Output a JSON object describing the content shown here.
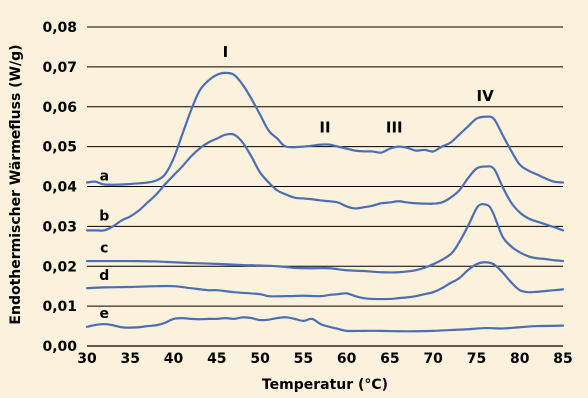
{
  "colors": {
    "background": "#fbf1dc",
    "plot_background": "#fbf1dc",
    "grid": "#000000",
    "series": "#4a6fb5"
  },
  "chart_data": {
    "type": "line",
    "xlabel": "Temperatur (°C)",
    "ylabel": "Endothermischer Wärmefluss (W/g)",
    "xlim": [
      30,
      85
    ],
    "ylim": [
      0,
      0.08
    ],
    "x_ticks": [
      "30",
      "35",
      "40",
      "45",
      "50",
      "55",
      "60",
      "65",
      "70",
      "75",
      "80",
      "85"
    ],
    "y_ticks": [
      "0,00",
      "0,01",
      "0,02",
      "0,03",
      "0,04",
      "0,05",
      "0,06",
      "0,07",
      "0,08"
    ],
    "grid": "horizontal",
    "series": [
      {
        "name": "a",
        "label_position": {
          "x": 32,
          "y": 0.0415
        },
        "x": [
          30,
          31,
          32,
          34,
          36,
          37,
          38,
          39,
          40,
          41,
          42,
          43,
          44,
          45,
          46,
          47,
          48,
          49,
          50,
          51,
          52,
          53,
          55,
          57,
          58,
          59,
          60,
          61,
          62,
          63,
          64,
          65,
          66,
          67,
          68,
          69,
          70,
          71,
          72,
          73,
          74,
          75,
          76,
          77,
          78,
          79,
          80,
          81,
          82,
          83,
          84,
          85
        ],
        "y": [
          0.041,
          0.0412,
          0.0405,
          0.0405,
          0.0408,
          0.041,
          0.0415,
          0.043,
          0.047,
          0.053,
          0.059,
          0.064,
          0.0665,
          0.068,
          0.0685,
          0.068,
          0.0655,
          0.062,
          0.058,
          0.054,
          0.052,
          0.05,
          0.05,
          0.0505,
          0.0505,
          0.05,
          0.0495,
          0.049,
          0.0488,
          0.0488,
          0.0485,
          0.0495,
          0.05,
          0.0497,
          0.049,
          0.0492,
          0.0488,
          0.05,
          0.051,
          0.053,
          0.055,
          0.057,
          0.0575,
          0.057,
          0.053,
          0.049,
          0.0455,
          0.044,
          0.043,
          0.042,
          0.0412,
          0.041
        ]
      },
      {
        "name": "b",
        "label_position": {
          "x": 32,
          "y": 0.0315
        },
        "x": [
          30,
          31,
          32,
          33,
          34,
          35,
          36,
          37,
          38,
          39,
          40,
          41,
          42,
          43,
          44,
          45,
          46,
          47,
          48,
          49,
          50,
          51,
          52,
          53,
          54,
          55,
          56,
          57,
          58,
          59,
          60,
          61,
          62,
          63,
          64,
          65,
          66,
          67,
          68,
          69,
          70,
          71,
          72,
          73,
          74,
          75,
          76,
          77,
          78,
          79,
          80,
          81,
          82,
          83,
          84,
          85
        ],
        "y": [
          0.029,
          0.029,
          0.029,
          0.03,
          0.0315,
          0.0325,
          0.034,
          0.036,
          0.038,
          0.0405,
          0.0428,
          0.045,
          0.0475,
          0.0495,
          0.051,
          0.052,
          0.053,
          0.053,
          0.051,
          0.0475,
          0.0435,
          0.041,
          0.039,
          0.038,
          0.0372,
          0.037,
          0.0368,
          0.0365,
          0.0363,
          0.036,
          0.035,
          0.0345,
          0.0348,
          0.0352,
          0.0358,
          0.036,
          0.0363,
          0.036,
          0.0358,
          0.0357,
          0.0357,
          0.036,
          0.0372,
          0.039,
          0.042,
          0.0445,
          0.045,
          0.0445,
          0.04,
          0.036,
          0.0335,
          0.032,
          0.0312,
          0.0305,
          0.0298,
          0.029
        ]
      },
      {
        "name": "c",
        "label_position": {
          "x": 32,
          "y": 0.0235
        },
        "x": [
          30,
          32,
          35,
          38,
          40,
          42,
          45,
          48,
          50,
          52,
          54,
          56,
          58,
          60,
          62,
          64,
          66,
          68,
          70,
          72,
          73,
          74,
          75,
          75.5,
          76,
          76.5,
          77,
          78,
          79,
          80,
          81,
          82,
          83,
          84,
          85
        ],
        "y": [
          0.0213,
          0.0213,
          0.0213,
          0.0212,
          0.021,
          0.0208,
          0.0206,
          0.0203,
          0.0202,
          0.02,
          0.0196,
          0.0195,
          0.0195,
          0.019,
          0.0188,
          0.0185,
          0.0185,
          0.019,
          0.0205,
          0.023,
          0.026,
          0.03,
          0.0345,
          0.0355,
          0.0355,
          0.035,
          0.033,
          0.0275,
          0.025,
          0.0235,
          0.0225,
          0.022,
          0.0218,
          0.0215,
          0.0213
        ]
      },
      {
        "name": "d",
        "label_position": {
          "x": 32,
          "y": 0.0165
        },
        "x": [
          30,
          32,
          35,
          38,
          40,
          42,
          44,
          45,
          47,
          50,
          51,
          53,
          55,
          57,
          58,
          59,
          60,
          61,
          62,
          63,
          65,
          66,
          67,
          68,
          69,
          70,
          71,
          72,
          73,
          74,
          75,
          76,
          77,
          78,
          79,
          80,
          81,
          82,
          83,
          84,
          85
        ],
        "y": [
          0.0145,
          0.0147,
          0.0148,
          0.015,
          0.015,
          0.0145,
          0.014,
          0.014,
          0.0135,
          0.013,
          0.0125,
          0.0125,
          0.0126,
          0.0125,
          0.0128,
          0.013,
          0.0132,
          0.0125,
          0.012,
          0.0118,
          0.0118,
          0.012,
          0.0122,
          0.0125,
          0.013,
          0.0135,
          0.0145,
          0.0158,
          0.017,
          0.019,
          0.0205,
          0.021,
          0.0205,
          0.0185,
          0.016,
          0.014,
          0.0135,
          0.0136,
          0.0138,
          0.014,
          0.0142
        ]
      },
      {
        "name": "e",
        "label_position": {
          "x": 32,
          "y": 0.007
        },
        "x": [
          30,
          31,
          32,
          33,
          34,
          35,
          36,
          37,
          38,
          39,
          40,
          41,
          42,
          43,
          44,
          45,
          46,
          47,
          48,
          49,
          50,
          51,
          52,
          53,
          54,
          55,
          56,
          57,
          58,
          59,
          60,
          62,
          64,
          66,
          68,
          70,
          72,
          74,
          76,
          78,
          80,
          82,
          85
        ],
        "y": [
          0.0048,
          0.0053,
          0.0055,
          0.0052,
          0.0047,
          0.0046,
          0.0047,
          0.005,
          0.0052,
          0.0058,
          0.0068,
          0.007,
          0.0068,
          0.0067,
          0.0068,
          0.0068,
          0.007,
          0.0068,
          0.0072,
          0.007,
          0.0065,
          0.0066,
          0.007,
          0.0072,
          0.0068,
          0.0063,
          0.0068,
          0.0055,
          0.0048,
          0.0043,
          0.0038,
          0.0038,
          0.0038,
          0.0037,
          0.0037,
          0.0038,
          0.004,
          0.0042,
          0.0045,
          0.0044,
          0.0047,
          0.005,
          0.0051
        ]
      }
    ],
    "annotations": [
      {
        "text": "I",
        "x": 46,
        "y": 0.0725
      },
      {
        "text": "II",
        "x": 57.5,
        "y": 0.0535
      },
      {
        "text": "III",
        "x": 65.5,
        "y": 0.0535
      },
      {
        "text": "IV",
        "x": 76,
        "y": 0.0615
      }
    ]
  }
}
